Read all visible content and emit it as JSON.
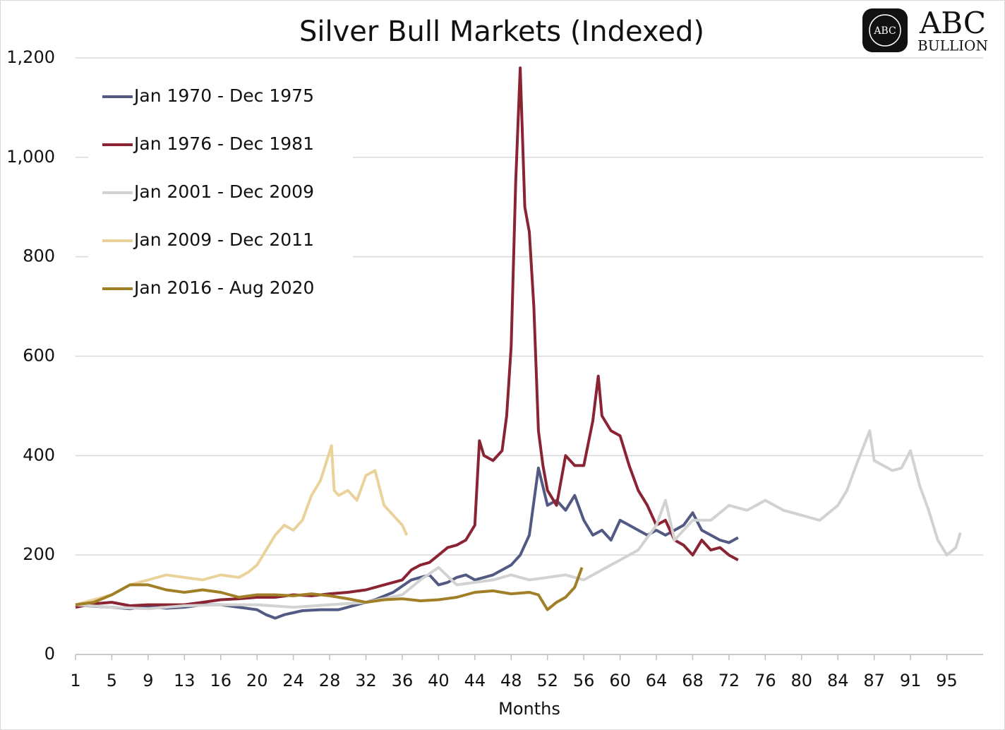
{
  "chart_data": {
    "type": "line",
    "title": "Silver Bull Markets (Indexed)",
    "logo": {
      "mark": "ABC",
      "name": "ABC",
      "sub": "BULLION"
    },
    "x_label": "Months",
    "xlim": [
      1,
      101
    ],
    "xticks": [
      1,
      5,
      9,
      13,
      {
        "value": 17,
        "label": "16"
      },
      {
        "value": 21,
        "label": "20"
      },
      {
        "value": 25,
        "label": "24"
      },
      {
        "value": 29,
        "label": "28"
      },
      {
        "value": 33,
        "label": "32"
      },
      {
        "value": 37,
        "label": "36"
      },
      {
        "value": 41,
        "label": "40"
      },
      {
        "value": 45,
        "label": "44"
      },
      {
        "value": 49,
        "label": "48"
      },
      {
        "value": 53,
        "label": "52"
      },
      {
        "value": 57,
        "label": "56"
      },
      {
        "value": 61,
        "label": "60"
      },
      {
        "value": 65,
        "label": "64"
      },
      {
        "value": 69,
        "label": "68"
      },
      {
        "value": 73,
        "label": "72"
      },
      {
        "value": 77,
        "label": "76"
      },
      {
        "value": 81,
        "label": "80"
      },
      {
        "value": 85,
        "label": "84"
      },
      {
        "value": 89,
        "label": "87"
      },
      {
        "value": 93,
        "label": "91"
      },
      {
        "value": 97,
        "label": "95"
      }
    ],
    "ylim": [
      0,
      1200
    ],
    "yticks": [
      0,
      200,
      400,
      600,
      800,
      {
        "value": 1000,
        "label": "1,000"
      },
      {
        "value": 1200,
        "label": "1,200"
      }
    ],
    "grid": true,
    "legend": "top-left",
    "series": [
      {
        "name": "Jan 1970 - Dec 1975",
        "color": "#525a84",
        "x": [
          1,
          3,
          5,
          7,
          9,
          11,
          13,
          15,
          17,
          19,
          21,
          22,
          23,
          24,
          26,
          28,
          30,
          32,
          34,
          36,
          38,
          40,
          41,
          42,
          43,
          44,
          45,
          46,
          47,
          48,
          49,
          50,
          51,
          52,
          53,
          54,
          55,
          56,
          57,
          58,
          59,
          60,
          61,
          62,
          63,
          64,
          65,
          66,
          67,
          68,
          69,
          70,
          71,
          72,
          73,
          74
        ],
        "values": [
          100,
          97,
          95,
          92,
          96,
          93,
          95,
          100,
          100,
          95,
          90,
          80,
          73,
          80,
          88,
          90,
          90,
          100,
          110,
          125,
          150,
          160,
          140,
          145,
          155,
          160,
          150,
          155,
          160,
          170,
          180,
          200,
          240,
          375,
          300,
          310,
          290,
          320,
          270,
          240,
          250,
          230,
          270,
          260,
          250,
          240,
          250,
          240,
          250,
          260,
          285,
          250,
          240,
          230,
          225,
          235
        ]
      },
      {
        "name": "Jan 1976 - Dec 1981",
        "color": "#8a2433",
        "x": [
          1,
          3,
          5,
          7,
          9,
          11,
          13,
          15,
          17,
          19,
          21,
          23,
          25,
          27,
          29,
          31,
          33,
          35,
          37,
          38,
          39,
          40,
          41,
          42,
          43,
          44,
          45,
          45.5,
          46,
          47,
          48,
          48.5,
          49,
          49.5,
          50,
          50.5,
          51,
          51.5,
          52,
          52.5,
          53,
          54,
          55,
          56,
          57,
          58,
          58.6,
          59,
          60,
          61,
          62,
          63,
          64,
          65,
          66,
          67,
          68,
          69,
          70,
          71,
          72,
          73,
          74
        ],
        "values": [
          95,
          102,
          105,
          98,
          100,
          100,
          100,
          105,
          110,
          112,
          115,
          115,
          120,
          118,
          122,
          125,
          130,
          140,
          150,
          170,
          180,
          185,
          200,
          215,
          220,
          230,
          260,
          430,
          400,
          390,
          410,
          480,
          620,
          950,
          1180,
          900,
          850,
          700,
          450,
          380,
          330,
          300,
          400,
          380,
          380,
          470,
          560,
          480,
          450,
          440,
          380,
          330,
          300,
          260,
          270,
          230,
          220,
          200,
          230,
          210,
          215,
          200,
          190
        ]
      },
      {
        "name": "Jan 2001 - Dec 2009",
        "color": "#d2d2d2",
        "x": [
          1,
          5,
          9,
          13,
          17,
          21,
          25,
          29,
          33,
          37,
          39,
          41,
          43,
          45,
          47,
          49,
          51,
          53,
          55,
          57,
          59,
          61,
          63,
          65,
          66,
          67,
          69,
          71,
          73,
          75,
          77,
          79,
          81,
          83,
          85,
          86,
          87,
          88.5,
          89,
          90,
          91,
          92,
          93,
          94,
          95,
          96,
          97,
          98,
          98.5
        ],
        "values": [
          100,
          95,
          92,
          98,
          100,
          100,
          95,
          100,
          105,
          120,
          150,
          175,
          140,
          145,
          150,
          160,
          150,
          155,
          160,
          150,
          170,
          190,
          210,
          260,
          310,
          230,
          270,
          270,
          300,
          290,
          310,
          290,
          280,
          270,
          300,
          330,
          380,
          450,
          390,
          380,
          370,
          375,
          410,
          340,
          290,
          230,
          200,
          215,
          245
        ]
      },
      {
        "name": "Jan 2009 - Dec 2011",
        "color": "#ead39b",
        "x": [
          1,
          3,
          5,
          7,
          9,
          11,
          13,
          15,
          17,
          19,
          20,
          21,
          22,
          23,
          24,
          25,
          26,
          27,
          28,
          29.2,
          29.5,
          30,
          31,
          32,
          33,
          34,
          35,
          36,
          37,
          37.5
        ],
        "values": [
          100,
          110,
          120,
          140,
          150,
          160,
          155,
          150,
          160,
          155,
          165,
          180,
          210,
          240,
          260,
          250,
          270,
          320,
          350,
          420,
          330,
          320,
          330,
          310,
          360,
          370,
          300,
          280,
          260,
          240
        ]
      },
      {
        "name": "Jan 2016 - Aug 2020",
        "color": "#a17f26",
        "x": [
          1,
          3,
          5,
          7,
          9,
          11,
          13,
          15,
          17,
          19,
          21,
          23,
          25,
          27,
          29,
          31,
          33,
          35,
          37,
          39,
          41,
          43,
          45,
          47,
          49,
          51,
          52,
          53,
          54,
          55,
          56,
          56.8
        ],
        "values": [
          100,
          105,
          120,
          140,
          140,
          130,
          125,
          130,
          125,
          115,
          120,
          120,
          118,
          122,
          118,
          112,
          105,
          110,
          112,
          108,
          110,
          115,
          125,
          128,
          122,
          125,
          120,
          90,
          105,
          115,
          135,
          175
        ]
      }
    ]
  }
}
